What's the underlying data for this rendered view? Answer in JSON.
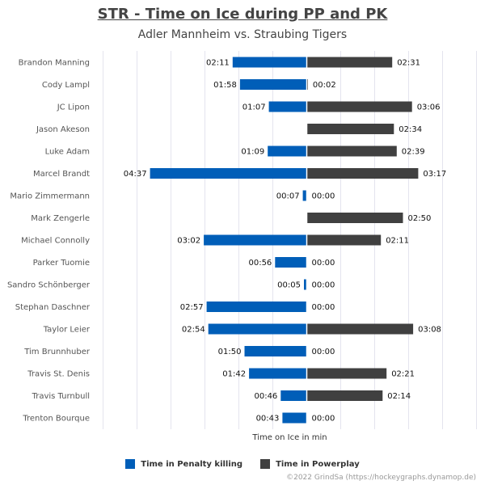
{
  "chart_data": {
    "type": "bar",
    "orientation": "horizontal-diverging",
    "title": "STR - Time on Ice during PP and PK",
    "subtitle": "Adler Mannheim vs. Straubing Tigers",
    "xlabel": "Time on Ice in min",
    "categories": [
      "Brandon Manning",
      "Cody Lampl",
      "JC Lipon",
      "Jason Akeson",
      "Luke Adam",
      "Marcel Brandt",
      "Mario Zimmermann",
      "Mark Zengerle",
      "Michael Connolly",
      "Parker Tuomie",
      "Sandro Schönberger",
      "Stephan Daschner",
      "Taylor Leier",
      "Tim Brunnhuber",
      "Travis St. Denis",
      "Travis Turnbull",
      "Trenton Bourque"
    ],
    "series": [
      {
        "name": "Time in Penalty killing",
        "color": "#005eb8",
        "values": [
          "02:11",
          "01:58",
          "01:07",
          null,
          "01:09",
          "04:37",
          "00:07",
          null,
          "03:02",
          "00:56",
          "00:05",
          "02:57",
          "02:54",
          "01:50",
          "01:42",
          "00:46",
          "00:43"
        ]
      },
      {
        "name": "Time in Powerplay",
        "color": "#404040",
        "values": [
          "02:31",
          "00:02",
          "03:06",
          "02:34",
          "02:39",
          "03:17",
          "00:00",
          "02:50",
          "02:11",
          "00:00",
          "00:00",
          "00:00",
          "03:08",
          "00:00",
          "02:21",
          "02:14",
          "00:00"
        ]
      }
    ],
    "legend_position": "bottom",
    "grid": true,
    "footer": "©2022 GrindSa (https://hockeygraphs.dynamop.de)"
  }
}
